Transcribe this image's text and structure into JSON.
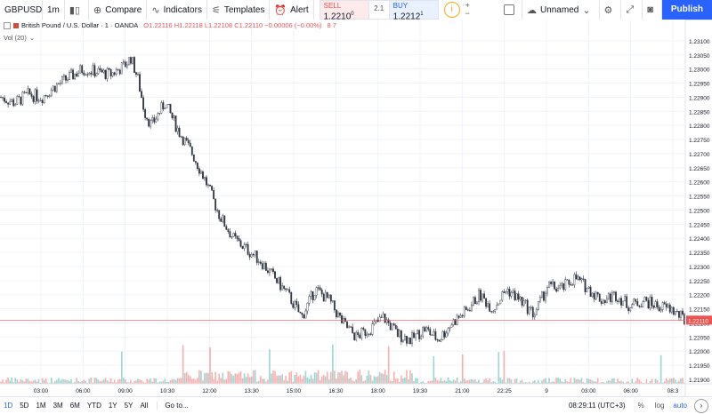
{
  "toolbar": {
    "symbol": "GBPUSD",
    "interval": "1m",
    "compare_label": "Compare",
    "indicators_label": "Indicators",
    "templates_label": "Templates",
    "alert_label": "Alert",
    "sell_label": "SELL",
    "sell_price": "1.2210",
    "sell_sup": "0",
    "spread": "2.1",
    "buy_label": "BUY",
    "buy_price": "1.2212",
    "buy_sup": "1",
    "layout_name": "Unnamed",
    "publish_label": "Publish"
  },
  "legend": {
    "title": "British Pound / U.S. Dollar · 1 · OANDA",
    "ohlc": "O1.22116  H1.22118  L1.22108  C1.22110  −0.00006 (−0.00%)",
    "counts": "8  7",
    "volume": "Vol (20)"
  },
  "chart_data": {
    "type": "line",
    "title": "British Pound / U.S. Dollar · 1 · OANDA",
    "last_price": "1.22110",
    "price_axis": [
      "1.23100",
      "1.23050",
      "1.23000",
      "1.22950",
      "1.22900",
      "1.22850",
      "1.22800",
      "1.22750",
      "1.22700",
      "1.22650",
      "1.22600",
      "1.22550",
      "1.22500",
      "1.22450",
      "1.22400",
      "1.22350",
      "1.22300",
      "1.22250",
      "1.22200",
      "1.22150",
      "1.22100",
      "1.22050",
      "1.22000",
      "1.21950",
      "1.21900"
    ],
    "time_axis": [
      "03:00",
      "06:00",
      "09:00",
      "10:30",
      "12:00",
      "13:30",
      "15:00",
      "16:30",
      "18:00",
      "19:30",
      "21:00",
      "22:25",
      "9",
      "03:00",
      "06:00",
      "08:3"
    ],
    "ylim": [
      1.219,
      1.2315
    ],
    "x": [
      0,
      2,
      4,
      6,
      8,
      10,
      12,
      14,
      16,
      18,
      19,
      20,
      21,
      22,
      24,
      26,
      28,
      30,
      32,
      34,
      36,
      38,
      40,
      42,
      44,
      46,
      48,
      50,
      52,
      54,
      56,
      58,
      60,
      62,
      64,
      66,
      68,
      70,
      72,
      74,
      76,
      78,
      80,
      82,
      84,
      86,
      88,
      90,
      92,
      94,
      96,
      98,
      100
    ],
    "series": [
      {
        "values": [
          1.229,
          1.2288,
          1.2291,
          1.229,
          1.2294,
          1.2297,
          1.23,
          1.2299,
          1.2298,
          1.2301,
          1.2304,
          1.2297,
          1.2285,
          1.228,
          1.2288,
          1.2278,
          1.227,
          1.226,
          1.2248,
          1.224,
          1.2236,
          1.2232,
          1.2226,
          1.222,
          1.2212,
          1.2222,
          1.2218,
          1.221,
          1.2205,
          1.2208,
          1.2212,
          1.2206,
          1.2204,
          1.2208,
          1.2204,
          1.221,
          1.2214,
          1.222,
          1.2215,
          1.2222,
          1.2218,
          1.2213,
          1.2223,
          1.2222,
          1.2226,
          1.2222,
          1.2218,
          1.222,
          1.2216,
          1.2218,
          1.2216,
          1.2215,
          1.2211
        ]
      }
    ]
  },
  "bottom": {
    "ranges": [
      "1D",
      "5D",
      "1M",
      "3M",
      "6M",
      "YTD",
      "1Y",
      "5Y",
      "All"
    ],
    "goto": "Go to...",
    "clock": "08:29:11 (UTC+3)",
    "pct": "%",
    "log": "log",
    "auto": "auto"
  },
  "colors": {
    "up": "#26a69a",
    "down": "#ef5350",
    "accent": "#2962ff"
  }
}
